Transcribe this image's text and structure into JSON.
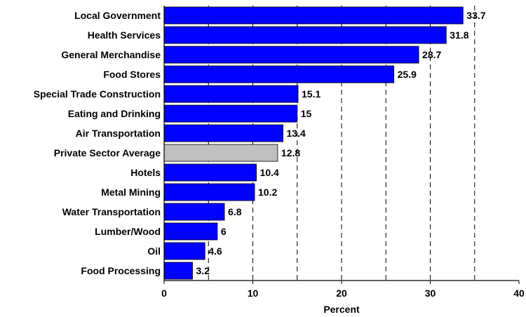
{
  "chart_data": {
    "type": "bar",
    "orientation": "horizontal",
    "title": "",
    "xlabel": "Percent",
    "ylabel": "",
    "xlim": [
      0,
      40
    ],
    "x_ticks": [
      "0",
      "10",
      "20",
      "30",
      "40"
    ],
    "grid": "vertical dashed lines at 5-unit intervals",
    "legend": "none",
    "categories": [
      "Local Government",
      "Health Services",
      "General Merchandise",
      "Food Stores",
      "Special Trade Construction",
      "Eating and Drinking",
      "Air Transportation",
      "Private Sector Average",
      "Hotels",
      "Metal Mining",
      "Water Transportation",
      "Lumber/Wood",
      "Oil",
      "Food Processing"
    ],
    "values": [
      33.7,
      31.8,
      28.7,
      25.9,
      15.1,
      15,
      13.4,
      12.8,
      10.4,
      10.2,
      6.8,
      6,
      4.6,
      3.2
    ],
    "value_labels": [
      "33.7",
      "31.8",
      "28.7",
      "25.9",
      "15.1",
      "15",
      "13.4",
      "12.8",
      "10.4",
      "10.2",
      "6.8",
      "6",
      "4.6",
      "3.2"
    ],
    "highlight_category": "Private Sector Average",
    "colors": {
      "bar": "#0000ff",
      "highlight": "#c0c0c0",
      "bar_edge": "#000000",
      "grid": "#000000"
    }
  }
}
